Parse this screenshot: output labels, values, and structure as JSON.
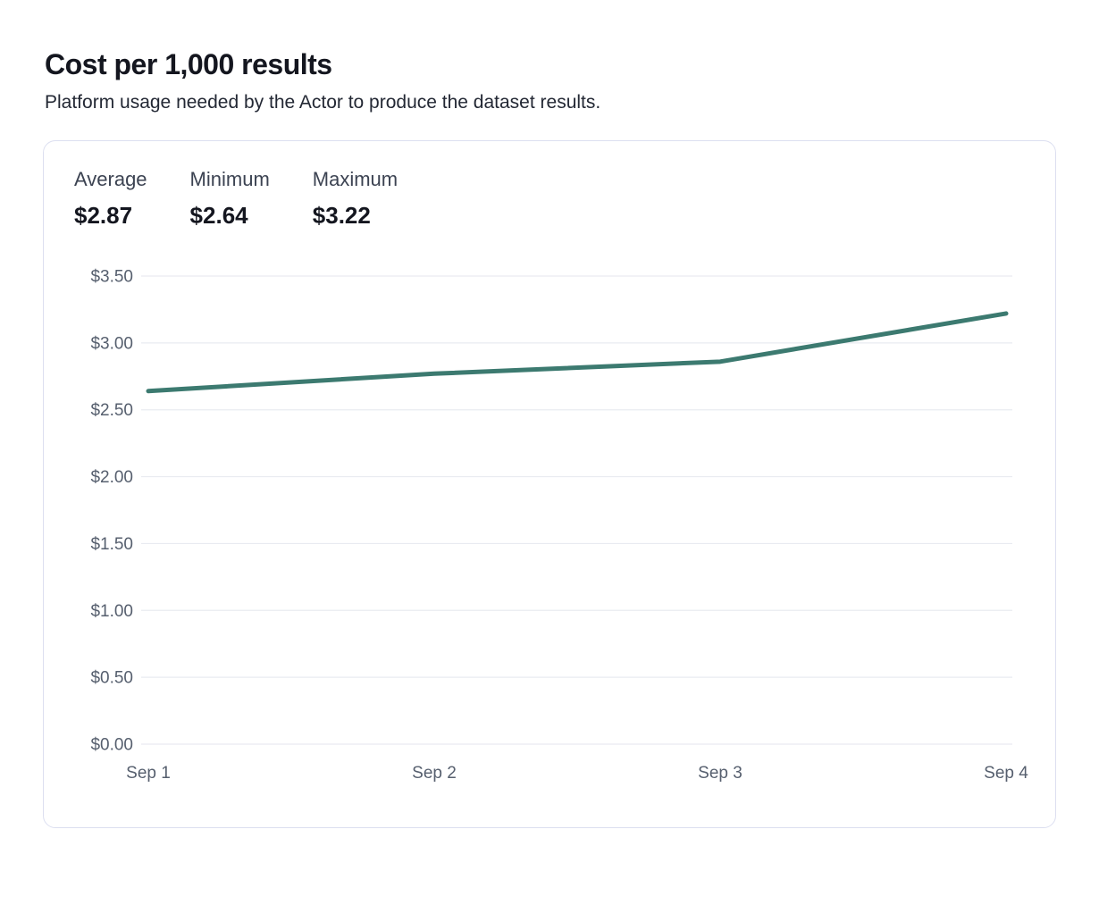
{
  "page": {
    "title": "Cost per 1,000 results",
    "subtitle": "Platform usage needed by the Actor to produce the dataset results."
  },
  "stats": [
    {
      "label": "Average",
      "value": "$2.87"
    },
    {
      "label": "Minimum",
      "value": "$2.64"
    },
    {
      "label": "Maximum",
      "value": "$3.22"
    }
  ],
  "chart_data": {
    "type": "line",
    "title": "Cost per 1,000 results",
    "x": [
      "Sep 1",
      "Sep 2",
      "Sep 3",
      "Sep 4"
    ],
    "series": [
      {
        "name": "Cost per 1,000 results",
        "values": [
          2.64,
          2.77,
          2.86,
          3.22
        ]
      }
    ],
    "xlabel": "",
    "ylabel": "",
    "ylim": [
      0,
      3.5
    ],
    "y_tick_step": 0.5,
    "y_tick_labels": [
      "$0.00",
      "$0.50",
      "$1.00",
      "$1.50",
      "$2.00",
      "$2.50",
      "$3.00",
      "$3.50"
    ],
    "grid": true,
    "legend": "none",
    "line_color": "#3c7a70",
    "grid_color": "#e9ebf1",
    "axis_label_color": "#565f6e"
  }
}
